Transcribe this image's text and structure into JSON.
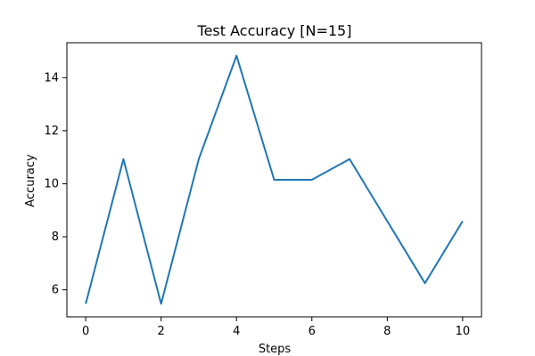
{
  "chart_data": {
    "type": "line",
    "title": "Test Accuracy [N=15]",
    "xlabel": "Steps",
    "ylabel": "Accuracy",
    "x": [
      0,
      1,
      2,
      3,
      4,
      5,
      6,
      7,
      8,
      9,
      10
    ],
    "series": [
      {
        "values": [
          5.47,
          10.93,
          5.47,
          10.93,
          14.83,
          10.15,
          10.15,
          10.93,
          8.59,
          6.25,
          8.59
        ],
        "color": "#1f77b4"
      }
    ],
    "xlim": [
      -0.5,
      10.5
    ],
    "ylim": [
      4.98,
      15.32
    ],
    "xticks": [
      0,
      2,
      4,
      6,
      8,
      10
    ],
    "yticks": [
      6,
      8,
      10,
      12,
      14
    ],
    "xtick_labels": [
      "0",
      "2",
      "4",
      "6",
      "8",
      "10"
    ],
    "ytick_labels": [
      "6",
      "8",
      "10",
      "12",
      "14"
    ],
    "grid": false,
    "legend": "none"
  }
}
